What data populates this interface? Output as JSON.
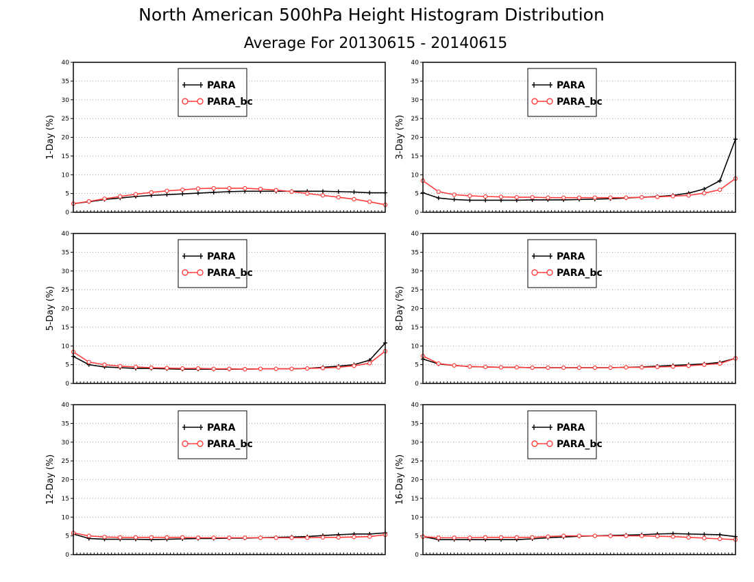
{
  "header": {
    "title": "North American 500hPa Height Histogram Distribution",
    "subtitle": "Average For 20130615 - 20140615"
  },
  "colors": {
    "PARA": "#000000",
    "PARA_bc": "#ff3b3b",
    "grid": "#9a9a9a"
  },
  "chart_data": [
    {
      "type": "line",
      "ylabel": "1-Day (%)",
      "ylim": [
        0,
        40
      ],
      "yticks": [
        0,
        5,
        10,
        15,
        20,
        25,
        30,
        35,
        40
      ],
      "grid": "dotted horizontal",
      "legend": "upper-center",
      "x": [
        1,
        2,
        3,
        4,
        5,
        6,
        7,
        8,
        9,
        10,
        11,
        12,
        13,
        14,
        15,
        16,
        17,
        18,
        19,
        20,
        21
      ],
      "series": [
        {
          "name": "PARA",
          "values": [
            2.3,
            2.8,
            3.4,
            3.8,
            4.2,
            4.5,
            4.7,
            4.9,
            5.1,
            5.3,
            5.5,
            5.6,
            5.6,
            5.6,
            5.6,
            5.6,
            5.6,
            5.5,
            5.4,
            5.2,
            5.2
          ]
        },
        {
          "name": "PARA_bc",
          "values": [
            2.3,
            2.9,
            3.6,
            4.2,
            4.8,
            5.3,
            5.7,
            6.0,
            6.3,
            6.4,
            6.4,
            6.4,
            6.2,
            5.9,
            5.5,
            5.0,
            4.5,
            4.0,
            3.5,
            2.8,
            2.0
          ]
        }
      ]
    },
    {
      "type": "line",
      "ylabel": "3-Day (%)",
      "ylim": [
        0,
        40
      ],
      "yticks": [
        0,
        5,
        10,
        15,
        20,
        25,
        30,
        35,
        40
      ],
      "grid": "dotted horizontal",
      "legend": "upper-center",
      "x": [
        1,
        2,
        3,
        4,
        5,
        6,
        7,
        8,
        9,
        10,
        11,
        12,
        13,
        14,
        15,
        16,
        17,
        18,
        19,
        20,
        21
      ],
      "series": [
        {
          "name": "PARA",
          "values": [
            5.2,
            3.8,
            3.4,
            3.2,
            3.2,
            3.2,
            3.2,
            3.3,
            3.3,
            3.3,
            3.4,
            3.5,
            3.6,
            3.8,
            4.0,
            4.2,
            4.5,
            5.1,
            6.2,
            8.4,
            19.5
          ]
        },
        {
          "name": "PARA_bc",
          "values": [
            8.4,
            5.5,
            4.7,
            4.4,
            4.2,
            4.1,
            4.0,
            4.0,
            3.9,
            3.9,
            3.9,
            3.9,
            3.9,
            3.9,
            4.0,
            4.1,
            4.3,
            4.5,
            5.1,
            6.0,
            9.0
          ]
        }
      ]
    },
    {
      "type": "line",
      "ylabel": "5-Day (%)",
      "ylim": [
        0,
        40
      ],
      "yticks": [
        0,
        5,
        10,
        15,
        20,
        25,
        30,
        35,
        40
      ],
      "grid": "dotted horizontal",
      "legend": "upper-center",
      "x": [
        1,
        2,
        3,
        4,
        5,
        6,
        7,
        8,
        9,
        10,
        11,
        12,
        13,
        14,
        15,
        16,
        17,
        18,
        19,
        20,
        21
      ],
      "series": [
        {
          "name": "PARA",
          "values": [
            7.2,
            5.0,
            4.4,
            4.2,
            4.0,
            4.0,
            3.9,
            3.8,
            3.8,
            3.8,
            3.8,
            3.8,
            3.9,
            3.9,
            3.9,
            4.0,
            4.3,
            4.6,
            5.0,
            6.2,
            10.8
          ]
        },
        {
          "name": "PARA_bc",
          "values": [
            8.4,
            5.7,
            5.0,
            4.6,
            4.4,
            4.2,
            4.1,
            4.0,
            4.0,
            3.9,
            3.9,
            3.8,
            3.9,
            3.9,
            3.9,
            4.0,
            4.1,
            4.3,
            4.7,
            5.4,
            8.6
          ]
        }
      ]
    },
    {
      "type": "line",
      "ylabel": "8-Day (%)",
      "ylim": [
        0,
        40
      ],
      "yticks": [
        0,
        5,
        10,
        15,
        20,
        25,
        30,
        35,
        40
      ],
      "grid": "dotted horizontal",
      "legend": "upper-center",
      "x": [
        1,
        2,
        3,
        4,
        5,
        6,
        7,
        8,
        9,
        10,
        11,
        12,
        13,
        14,
        15,
        16,
        17,
        18,
        19,
        20,
        21
      ],
      "series": [
        {
          "name": "PARA",
          "values": [
            6.5,
            5.2,
            4.8,
            4.5,
            4.4,
            4.3,
            4.3,
            4.2,
            4.2,
            4.2,
            4.2,
            4.2,
            4.2,
            4.3,
            4.4,
            4.6,
            4.8,
            5.0,
            5.2,
            5.6,
            6.7
          ]
        },
        {
          "name": "PARA_bc",
          "values": [
            7.3,
            5.3,
            4.8,
            4.5,
            4.4,
            4.3,
            4.3,
            4.2,
            4.2,
            4.2,
            4.2,
            4.2,
            4.2,
            4.3,
            4.3,
            4.4,
            4.5,
            4.7,
            5.0,
            5.3,
            6.7
          ]
        }
      ]
    },
    {
      "type": "line",
      "ylabel": "12-Day (%)",
      "ylim": [
        0,
        40
      ],
      "yticks": [
        0,
        5,
        10,
        15,
        20,
        25,
        30,
        35,
        40
      ],
      "grid": "dotted horizontal",
      "legend": "upper-center",
      "x": [
        1,
        2,
        3,
        4,
        5,
        6,
        7,
        8,
        9,
        10,
        11,
        12,
        13,
        14,
        15,
        16,
        17,
        18,
        19,
        20,
        21
      ],
      "series": [
        {
          "name": "PARA",
          "values": [
            5.5,
            4.3,
            4.1,
            4.1,
            4.1,
            4.0,
            4.1,
            4.2,
            4.3,
            4.3,
            4.4,
            4.4,
            4.5,
            4.6,
            4.7,
            4.8,
            5.1,
            5.3,
            5.5,
            5.5,
            5.8
          ]
        },
        {
          "name": "PARA_bc",
          "values": [
            5.8,
            5.0,
            4.7,
            4.6,
            4.6,
            4.6,
            4.6,
            4.6,
            4.5,
            4.5,
            4.5,
            4.5,
            4.5,
            4.5,
            4.5,
            4.5,
            4.6,
            4.6,
            4.7,
            4.8,
            5.3
          ]
        }
      ]
    },
    {
      "type": "line",
      "ylabel": "16-Day (%)",
      "ylim": [
        0,
        40
      ],
      "yticks": [
        0,
        5,
        10,
        15,
        20,
        25,
        30,
        35,
        40
      ],
      "grid": "dotted horizontal",
      "legend": "upper-center",
      "x": [
        1,
        2,
        3,
        4,
        5,
        6,
        7,
        8,
        9,
        10,
        11,
        12,
        13,
        14,
        15,
        16,
        17,
        18,
        19,
        20,
        21
      ],
      "series": [
        {
          "name": "PARA",
          "values": [
            4.8,
            4.0,
            4.0,
            4.0,
            4.0,
            4.0,
            4.0,
            4.2,
            4.5,
            4.7,
            4.9,
            5.0,
            5.1,
            5.2,
            5.3,
            5.5,
            5.6,
            5.5,
            5.4,
            5.3,
            4.8
          ]
        },
        {
          "name": "PARA_bc",
          "values": [
            4.8,
            4.5,
            4.5,
            4.5,
            4.6,
            4.6,
            4.6,
            4.6,
            4.8,
            5.0,
            5.0,
            5.0,
            5.0,
            5.0,
            5.0,
            4.9,
            4.8,
            4.6,
            4.4,
            4.2,
            4.0
          ]
        }
      ]
    }
  ]
}
